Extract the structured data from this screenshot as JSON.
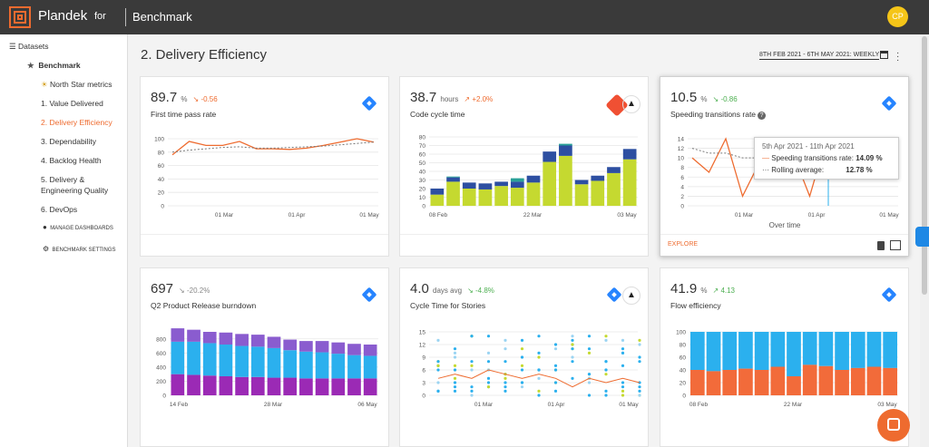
{
  "app": {
    "brand": "Plandek",
    "for_label": "for",
    "workspace": "Benchmark",
    "user_initials": "CP"
  },
  "sidebar": {
    "datasets": "Datasets",
    "group": "Benchmark",
    "items": [
      {
        "label": "North Star metrics"
      },
      {
        "label": "1. Value Delivered"
      },
      {
        "label": "2. Delivery Efficiency",
        "active": true
      },
      {
        "label": "3. Dependability"
      },
      {
        "label": "4. Backlog Health"
      },
      {
        "label": "5. Delivery &"
      },
      {
        "label": "Engineering Quality"
      },
      {
        "label": "6. DevOps"
      }
    ],
    "manage": "Manage Dashboards",
    "settings": "Benchmark Settings"
  },
  "page": {
    "title": "2. Delivery Efficiency",
    "date_range": "8TH FEB 2021 - 6TH MAY 2021: WEEKLY"
  },
  "colors": {
    "accent": "#ee6b2f",
    "jira": "#2684ff",
    "line": "#ee6b2f",
    "bar_green": "#c5d930",
    "bar_blue": "#2d4fa1",
    "bar_teal": "#2aa198",
    "burn_top": "#8a5ccf",
    "burn_mid": "#2bb0ee",
    "burn_bot": "#9b2ab5",
    "flow_blue": "#2bb0ee",
    "flow_orange": "#f26b3a"
  },
  "cards": [
    {
      "value": "89.7",
      "unit": "%",
      "delta": "-0.56",
      "title": "First time pass rate",
      "icons": [
        "jira-icon"
      ]
    },
    {
      "value": "38.7",
      "unit": "hours",
      "delta": "+2.0%",
      "title": "Code cycle time",
      "icons": [
        "git-icon",
        "rocket-icon"
      ]
    },
    {
      "value": "10.5",
      "unit": "%",
      "delta": "-0.86",
      "title": "Speeding transitions rate",
      "icons": [
        "jira-icon"
      ],
      "explore": "EXPLORE",
      "x_title": "Over time",
      "tooltip": {
        "date": "5th Apr 2021 - 11th Apr 2021",
        "line1_label": "Speeding transitions rate:",
        "line1_value": "14.09 %",
        "line2_label": "Rolling average:",
        "line2_value": "12.78 %"
      }
    },
    {
      "value": "697",
      "unit": "",
      "delta": "-20.2%",
      "title": "Q2 Product Release burndown",
      "icons": [
        "jira-icon"
      ]
    },
    {
      "value": "4.0",
      "unit": "days avg",
      "delta": "-4.8%",
      "title": "Cycle Time for Stories",
      "icons": [
        "jira-icon",
        "rocket-icon"
      ]
    },
    {
      "value": "41.9",
      "unit": "%",
      "delta": "4.13",
      "title": "Flow efficiency",
      "icons": [
        "jira-icon"
      ]
    }
  ],
  "chart_data": [
    {
      "type": "line",
      "x": [
        "08 Feb",
        "15 Feb",
        "22 Feb",
        "01 Mar",
        "08 Mar",
        "15 Mar",
        "22 Mar",
        "29 Mar",
        "05 Apr",
        "12 Apr",
        "19 Apr",
        "26 Apr",
        "03 May"
      ],
      "xticks": [
        "01 Mar",
        "01 Apr",
        "01 May"
      ],
      "ylim": [
        0,
        100
      ],
      "yticks": [
        0,
        20,
        40,
        60,
        80,
        100
      ],
      "series": [
        {
          "values": [
            76,
            96,
            90,
            90,
            96,
            85,
            85,
            84,
            86,
            90,
            95,
            100,
            95
          ]
        },
        {
          "values": [
            80,
            83,
            85,
            87,
            88,
            86,
            86,
            87,
            88,
            89,
            91,
            93,
            95
          ]
        }
      ]
    },
    {
      "type": "bar",
      "categories": [
        "08 Feb",
        "15 Feb",
        "22 Feb",
        "01 Mar",
        "08 Mar",
        "15 Mar",
        "22 Mar",
        "29 Mar",
        "05 Apr",
        "12 Apr",
        "19 Apr",
        "26 Apr",
        "03 May"
      ],
      "xticks": [
        "08 Feb",
        "22 Mar",
        "03 May"
      ],
      "ylim": [
        0,
        80
      ],
      "yticks": [
        0,
        10,
        20,
        30,
        40,
        50,
        60,
        70,
        80
      ],
      "series": [
        {
          "values": [
            13,
            28,
            20,
            19,
            23,
            21,
            27,
            51,
            58,
            25,
            29,
            38,
            54
          ]
        },
        {
          "values": [
            7,
            5,
            7,
            7,
            5,
            7,
            8,
            12,
            12,
            5,
            6,
            7,
            12
          ]
        },
        {
          "values": [
            0,
            1,
            0,
            0,
            0,
            4,
            0,
            0,
            2,
            0,
            0,
            0,
            0
          ]
        }
      ]
    },
    {
      "type": "line",
      "x": [
        "08 Feb",
        "15 Feb",
        "22 Feb",
        "01 Mar",
        "08 Mar",
        "15 Mar",
        "22 Mar",
        "29 Mar",
        "05 Apr",
        "12 Apr",
        "19 Apr",
        "26 Apr",
        "03 May"
      ],
      "xticks": [
        "01 Mar",
        "01 Apr",
        "01 May"
      ],
      "ylim": [
        0,
        14
      ],
      "yticks": [
        0,
        2,
        4,
        6,
        8,
        10,
        12,
        14
      ],
      "series": [
        {
          "values": [
            10,
            7,
            14,
            2,
            9,
            6,
            11,
            2,
            14,
            9,
            9,
            12,
            9
          ]
        },
        {
          "values": [
            12,
            11,
            11,
            10,
            10,
            9,
            9,
            9,
            13,
            12,
            12,
            12,
            11
          ]
        }
      ]
    },
    {
      "type": "bar",
      "categories": [
        "14 Feb",
        "21 Feb",
        "28 Feb",
        "07 Mar",
        "14 Mar",
        "21 Mar",
        "28 Mar",
        "04 Apr",
        "11 Apr",
        "18 Apr",
        "25 Apr",
        "02 May",
        "06 May"
      ],
      "xticks": [
        "14 Feb",
        "28 Mar",
        "06 May"
      ],
      "ylim": [
        0,
        900
      ],
      "yticks": [
        0,
        200,
        400,
        600,
        800
      ],
      "series": [
        {
          "values": [
            300,
            290,
            280,
            270,
            260,
            260,
            250,
            250,
            240,
            240,
            240,
            240,
            240
          ]
        },
        {
          "values": [
            460,
            470,
            460,
            450,
            440,
            430,
            420,
            390,
            380,
            370,
            350,
            330,
            320
          ]
        },
        {
          "values": [
            190,
            170,
            160,
            170,
            170,
            170,
            160,
            150,
            150,
            160,
            160,
            160,
            160
          ]
        }
      ]
    },
    {
      "type": "scatter",
      "xticks": [
        "01 Mar",
        "01 Apr",
        "01 May"
      ],
      "ylim": [
        0,
        15
      ],
      "yticks": [
        0,
        3,
        6,
        9,
        12,
        15
      ]
    },
    {
      "type": "bar",
      "categories": [
        "08 Feb",
        "15 Feb",
        "22 Feb",
        "01 Mar",
        "08 Mar",
        "15 Mar",
        "22 Mar",
        "29 Mar",
        "05 Apr",
        "12 Apr",
        "19 Apr",
        "26 Apr",
        "03 May"
      ],
      "xticks": [
        "08 Feb",
        "22 Mar",
        "03 May"
      ],
      "ylim": [
        0,
        100
      ],
      "yticks": [
        0,
        20,
        40,
        60,
        80,
        100
      ],
      "series": [
        {
          "values": [
            40,
            38,
            40,
            42,
            40,
            45,
            30,
            48,
            46,
            40,
            43,
            45,
            43
          ]
        }
      ]
    }
  ]
}
